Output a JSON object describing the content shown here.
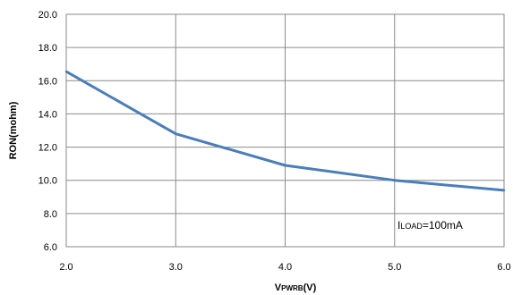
{
  "chart_data": {
    "type": "line",
    "title": "",
    "xlabel": {
      "main": "V",
      "sub": "PWRB",
      "suffix": "(V)"
    },
    "ylabel": "RON(mohm)",
    "xlim": [
      2.0,
      6.0
    ],
    "ylim": [
      6.0,
      20.0
    ],
    "x_ticks": [
      2.0,
      3.0,
      4.0,
      5.0,
      6.0
    ],
    "x_tick_labels": [
      "2.0",
      "3.0",
      "4.0",
      "5.0",
      "6.0"
    ],
    "y_ticks": [
      6.0,
      8.0,
      10.0,
      12.0,
      14.0,
      16.0,
      18.0,
      20.0
    ],
    "y_tick_labels": [
      "6.0",
      "8.0",
      "10.0",
      "12.0",
      "14.0",
      "16.0",
      "18.0",
      "20.0"
    ],
    "grid": true,
    "series": [
      {
        "color": "#4a7ebb",
        "x": [
          2.0,
          3.0,
          4.0,
          5.0,
          6.0
        ],
        "y": [
          16.55,
          12.8,
          10.9,
          10.0,
          9.4
        ]
      }
    ],
    "annotation": {
      "main": "I",
      "sub": "LOAD",
      "suffix": "=100mA"
    }
  }
}
